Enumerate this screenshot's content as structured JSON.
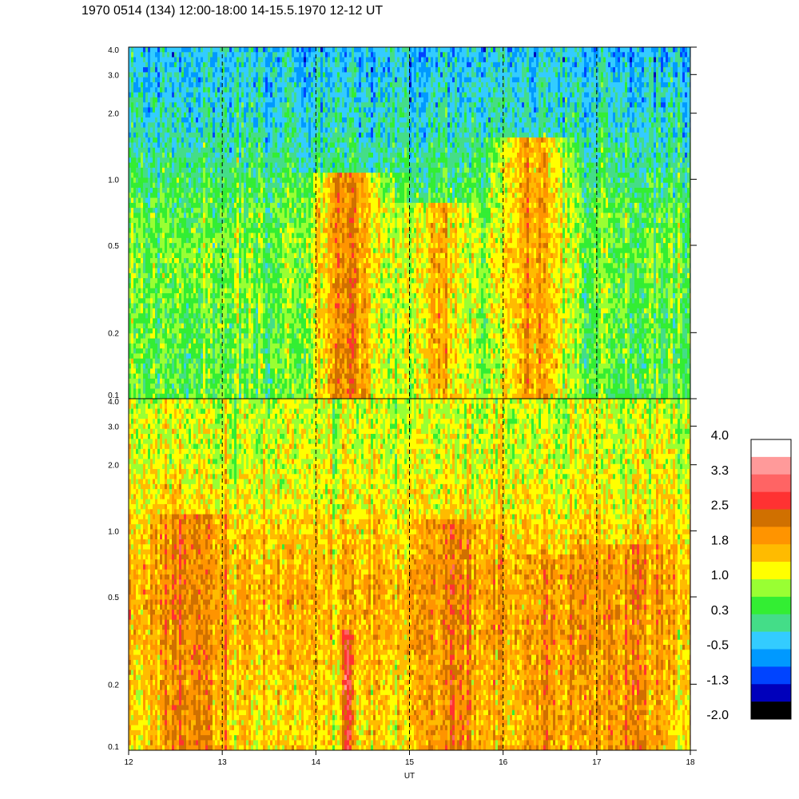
{
  "title": "1970 0514 (134) 12:00-18:00 14-15.5.1970  12-12 UT",
  "chart_data": {
    "type": "heatmap",
    "xlabel": "UT",
    "xlim": [
      12,
      18
    ],
    "xticks": [
      "12",
      "13",
      "14",
      "15",
      "16",
      "17",
      "18"
    ],
    "vertical_dashed_lines_at": [
      13,
      14,
      15,
      16,
      17
    ],
    "ylim": [
      0.1,
      4.0
    ],
    "yscale": "log",
    "yticks": [
      {
        "value": 0.1,
        "label": "0.1"
      },
      {
        "value": 0.2,
        "label": "0.2"
      },
      {
        "value": 0.5,
        "label": "0.5"
      },
      {
        "value": 1.0,
        "label": "1.0"
      },
      {
        "value": 2.0,
        "label": "2.0"
      },
      {
        "value": 3.0,
        "label": "3.0"
      },
      {
        "value": 4.0,
        "label": "4.0"
      }
    ],
    "panels": [
      {
        "name": "upper",
        "dominant_level": 0.8,
        "level_low_freq": 0.5,
        "level_high_freq": -0.4,
        "features": [
          {
            "x": 14.33,
            "ymax": 1.1,
            "level": 2.1
          },
          {
            "x": 16.3,
            "ymax": 1.6,
            "level": 1.8
          },
          {
            "x": 15.3,
            "ymax": 0.8,
            "level": 1.6
          }
        ]
      },
      {
        "name": "lower",
        "dominant_level": 1.6,
        "level_low_freq": 1.4,
        "level_high_freq": 1.0,
        "features": [
          {
            "x": 14.33,
            "ymax": 0.35,
            "level": 2.8
          },
          {
            "x": 12.7,
            "ymax": 1.2,
            "level": 2.1
          },
          {
            "x": 15.45,
            "ymax": 1.15,
            "level": 2.1
          },
          {
            "x": 16.5,
            "ymax": 0.8,
            "level": 2.0
          },
          {
            "x": 17.3,
            "ymax": 0.85,
            "level": 2.1
          }
        ]
      }
    ],
    "colorbar": {
      "labels": [
        "4.0",
        "3.3",
        "2.5",
        "1.8",
        "1.0",
        "0.3",
        "-0.5",
        "-1.3",
        "-2.0"
      ],
      "colors": [
        "#ffffff",
        "#ff9a9a",
        "#ff6464",
        "#ff3232",
        "#d07000",
        "#ff9400",
        "#ffbb00",
        "#ffff00",
        "#99ff33",
        "#33ee33",
        "#44dd88",
        "#33ccff",
        "#0099ff",
        "#0044ff",
        "#0000bb",
        "#000000"
      ]
    }
  }
}
